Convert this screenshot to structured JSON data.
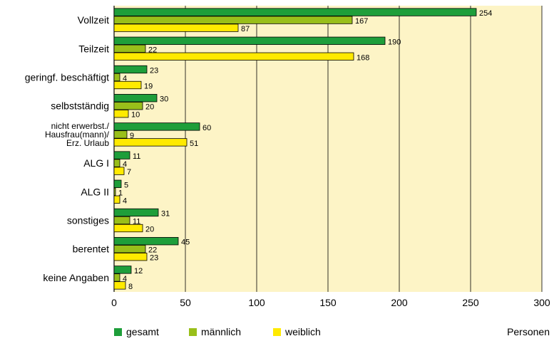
{
  "chart_data": {
    "type": "bar",
    "orientation": "horizontal",
    "categories": [
      [
        "Vollzeit"
      ],
      [
        "Teilzeit"
      ],
      [
        "geringf. beschäftigt"
      ],
      [
        "selbstständig"
      ],
      [
        "nicht erwerbst./",
        "Hausfrau(mann)/",
        "Erz. Urlaub"
      ],
      [
        "ALG  I"
      ],
      [
        "ALG  II"
      ],
      [
        "sonstiges"
      ],
      [
        "berentet"
      ],
      [
        "keine Angaben"
      ]
    ],
    "series": [
      {
        "name": "gesamt",
        "color": "#1e9e3a",
        "values": [
          254,
          190,
          23,
          30,
          60,
          11,
          5,
          31,
          45,
          12
        ]
      },
      {
        "name": "männlich",
        "color": "#99bf1a",
        "values": [
          167,
          22,
          4,
          20,
          9,
          4,
          1,
          11,
          22,
          4
        ]
      },
      {
        "name": "weiblich",
        "color": "#ffea00",
        "values": [
          87,
          168,
          19,
          10,
          51,
          7,
          4,
          20,
          23,
          8
        ]
      }
    ],
    "xlim": [
      0,
      300
    ],
    "xticks": [
      0,
      50,
      100,
      150,
      200,
      250,
      300
    ],
    "xlabel": "Personen",
    "plot_background": "#fdf4c6",
    "grid": true,
    "legend_position": "bottom-left"
  }
}
